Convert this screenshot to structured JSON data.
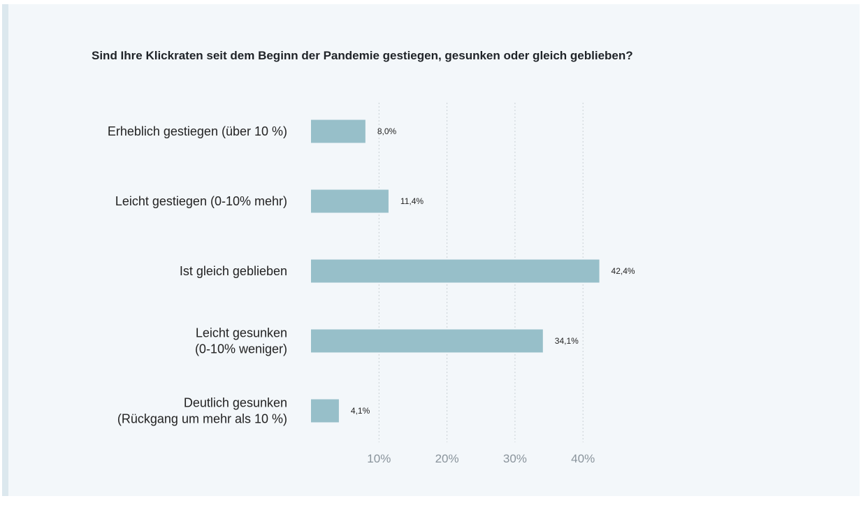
{
  "chart_data": {
    "type": "bar",
    "orientation": "horizontal",
    "title": "Sind Ihre Klickraten seit dem Beginn der Pandemie gestiegen, gesunken oder gleich geblieben?",
    "categories": [
      [
        "Erheblich gestiegen (über 10 %)"
      ],
      [
        "Leicht gestiegen (0-10% mehr)"
      ],
      [
        "Ist gleich geblieben"
      ],
      [
        "Leicht gesunken",
        "(0-10% weniger)"
      ],
      [
        "Deutlich gesunken",
        "(Rückgang um mehr als 10 %)"
      ]
    ],
    "values": [
      8.0,
      11.4,
      42.4,
      34.1,
      4.1
    ],
    "value_labels": [
      "8,0%",
      "11,4%",
      "42,4%",
      "34,1%",
      "4,1%"
    ],
    "ticks": [
      10,
      20,
      30,
      40
    ],
    "tick_labels": [
      "10%",
      "20%",
      "30%",
      "40%"
    ],
    "xlim": [
      0,
      45
    ],
    "grid": true,
    "bar_color": "#97bfc9",
    "xlabel": "",
    "ylabel": ""
  }
}
